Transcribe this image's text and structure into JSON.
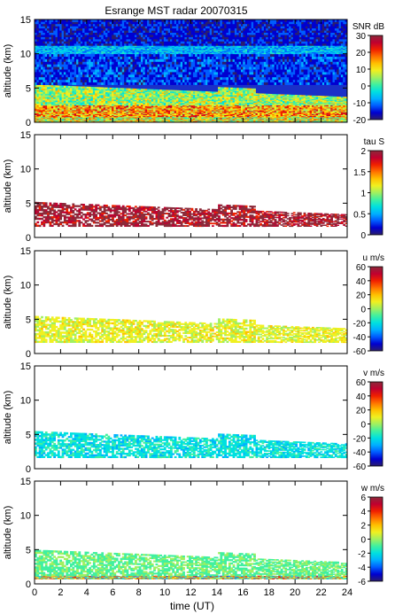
{
  "chart_data": {
    "type": "heatmap",
    "title": "Esrange MST radar 20070315",
    "xlabel": "time (UT)",
    "xlim": [
      0,
      24
    ],
    "x_ticks": [
      "0",
      "2",
      "4",
      "6",
      "8",
      "10",
      "12",
      "14",
      "16",
      "18",
      "20",
      "22",
      "24"
    ],
    "ylabel": "altitude (km)",
    "ylim": [
      0,
      15
    ],
    "y_ticks": [
      "0",
      "5",
      "10",
      "15"
    ],
    "panels": [
      {
        "id": "snr",
        "colorbar_label": "SNR dB",
        "crange": [
          -20,
          30
        ],
        "colorbar_ticks": [
          "30",
          "20",
          "10",
          "0",
          "-10",
          "-20"
        ],
        "background": "#1a30c8",
        "layers": [
          {
            "name": "noise-floor",
            "alt": [
              0.0,
              0.8
            ],
            "value": 8,
            "spread": 12
          },
          {
            "name": "boundary-layer",
            "alt": [
              0.8,
              2.5
            ],
            "value": 14,
            "spread": 10
          },
          {
            "name": "lower-troposphere",
            "alt": [
              2.5,
              5.5
            ],
            "value": 5,
            "spread": 8
          },
          {
            "name": "mid-troposphere",
            "alt": [
              5.5,
              10.0
            ],
            "value": -12,
            "spread": 5
          },
          {
            "name": "tropopause",
            "alt": [
              10.0,
              11.2
            ],
            "value": -6,
            "spread": 6
          },
          {
            "name": "stratosphere",
            "alt": [
              11.2,
              15.0
            ],
            "value": -14,
            "spread": 4
          }
        ]
      },
      {
        "id": "tau",
        "colorbar_label": "tau S",
        "crange": [
          0,
          2
        ],
        "colorbar_ticks": [
          "2",
          "1.5",
          "1",
          "0.5",
          "0"
        ],
        "background": "#ffffff",
        "layers": [
          {
            "name": "echo-layer",
            "alt": [
              1.6,
              5.2
            ],
            "value": 1.9,
            "spread": 0.3
          }
        ]
      },
      {
        "id": "u",
        "colorbar_label": "u m/s",
        "crange": [
          -60,
          60
        ],
        "colorbar_ticks": [
          "60",
          "40",
          "20",
          "0",
          "-20",
          "-40",
          "-60"
        ],
        "background": "#ffffff",
        "layers": [
          {
            "name": "echo-layer",
            "alt": [
              1.6,
              5.5
            ],
            "value": 8,
            "spread": 8
          }
        ]
      },
      {
        "id": "v",
        "colorbar_label": "v m/s",
        "crange": [
          -60,
          60
        ],
        "colorbar_ticks": [
          "60",
          "40",
          "20",
          "0",
          "-20",
          "-40",
          "-60"
        ],
        "background": "#ffffff",
        "layers": [
          {
            "name": "echo-layer",
            "alt": [
              1.6,
              5.5
            ],
            "value": -18,
            "spread": 8
          }
        ]
      },
      {
        "id": "w",
        "colorbar_label": "w m/s",
        "crange": [
          -6,
          6
        ],
        "colorbar_ticks": [
          "6",
          "4",
          "2",
          "0",
          "-2",
          "-4",
          "-6"
        ],
        "background": "#ffffff",
        "layers": [
          {
            "name": "noise-floor",
            "alt": [
              0.7,
              1.2
            ],
            "value": 0.5,
            "spread": 4
          },
          {
            "name": "echo-layer",
            "alt": [
              1.2,
              5.0
            ],
            "value": -0.6,
            "spread": 0.6
          }
        ]
      }
    ],
    "colormap": [
      "#2b1e6e",
      "#0000d0",
      "#005cff",
      "#00b0ff",
      "#00e0e0",
      "#40f0a0",
      "#a0f060",
      "#f0f020",
      "#ffc000",
      "#ff7000",
      "#f02000",
      "#c00030",
      "#8c2a3a"
    ]
  }
}
